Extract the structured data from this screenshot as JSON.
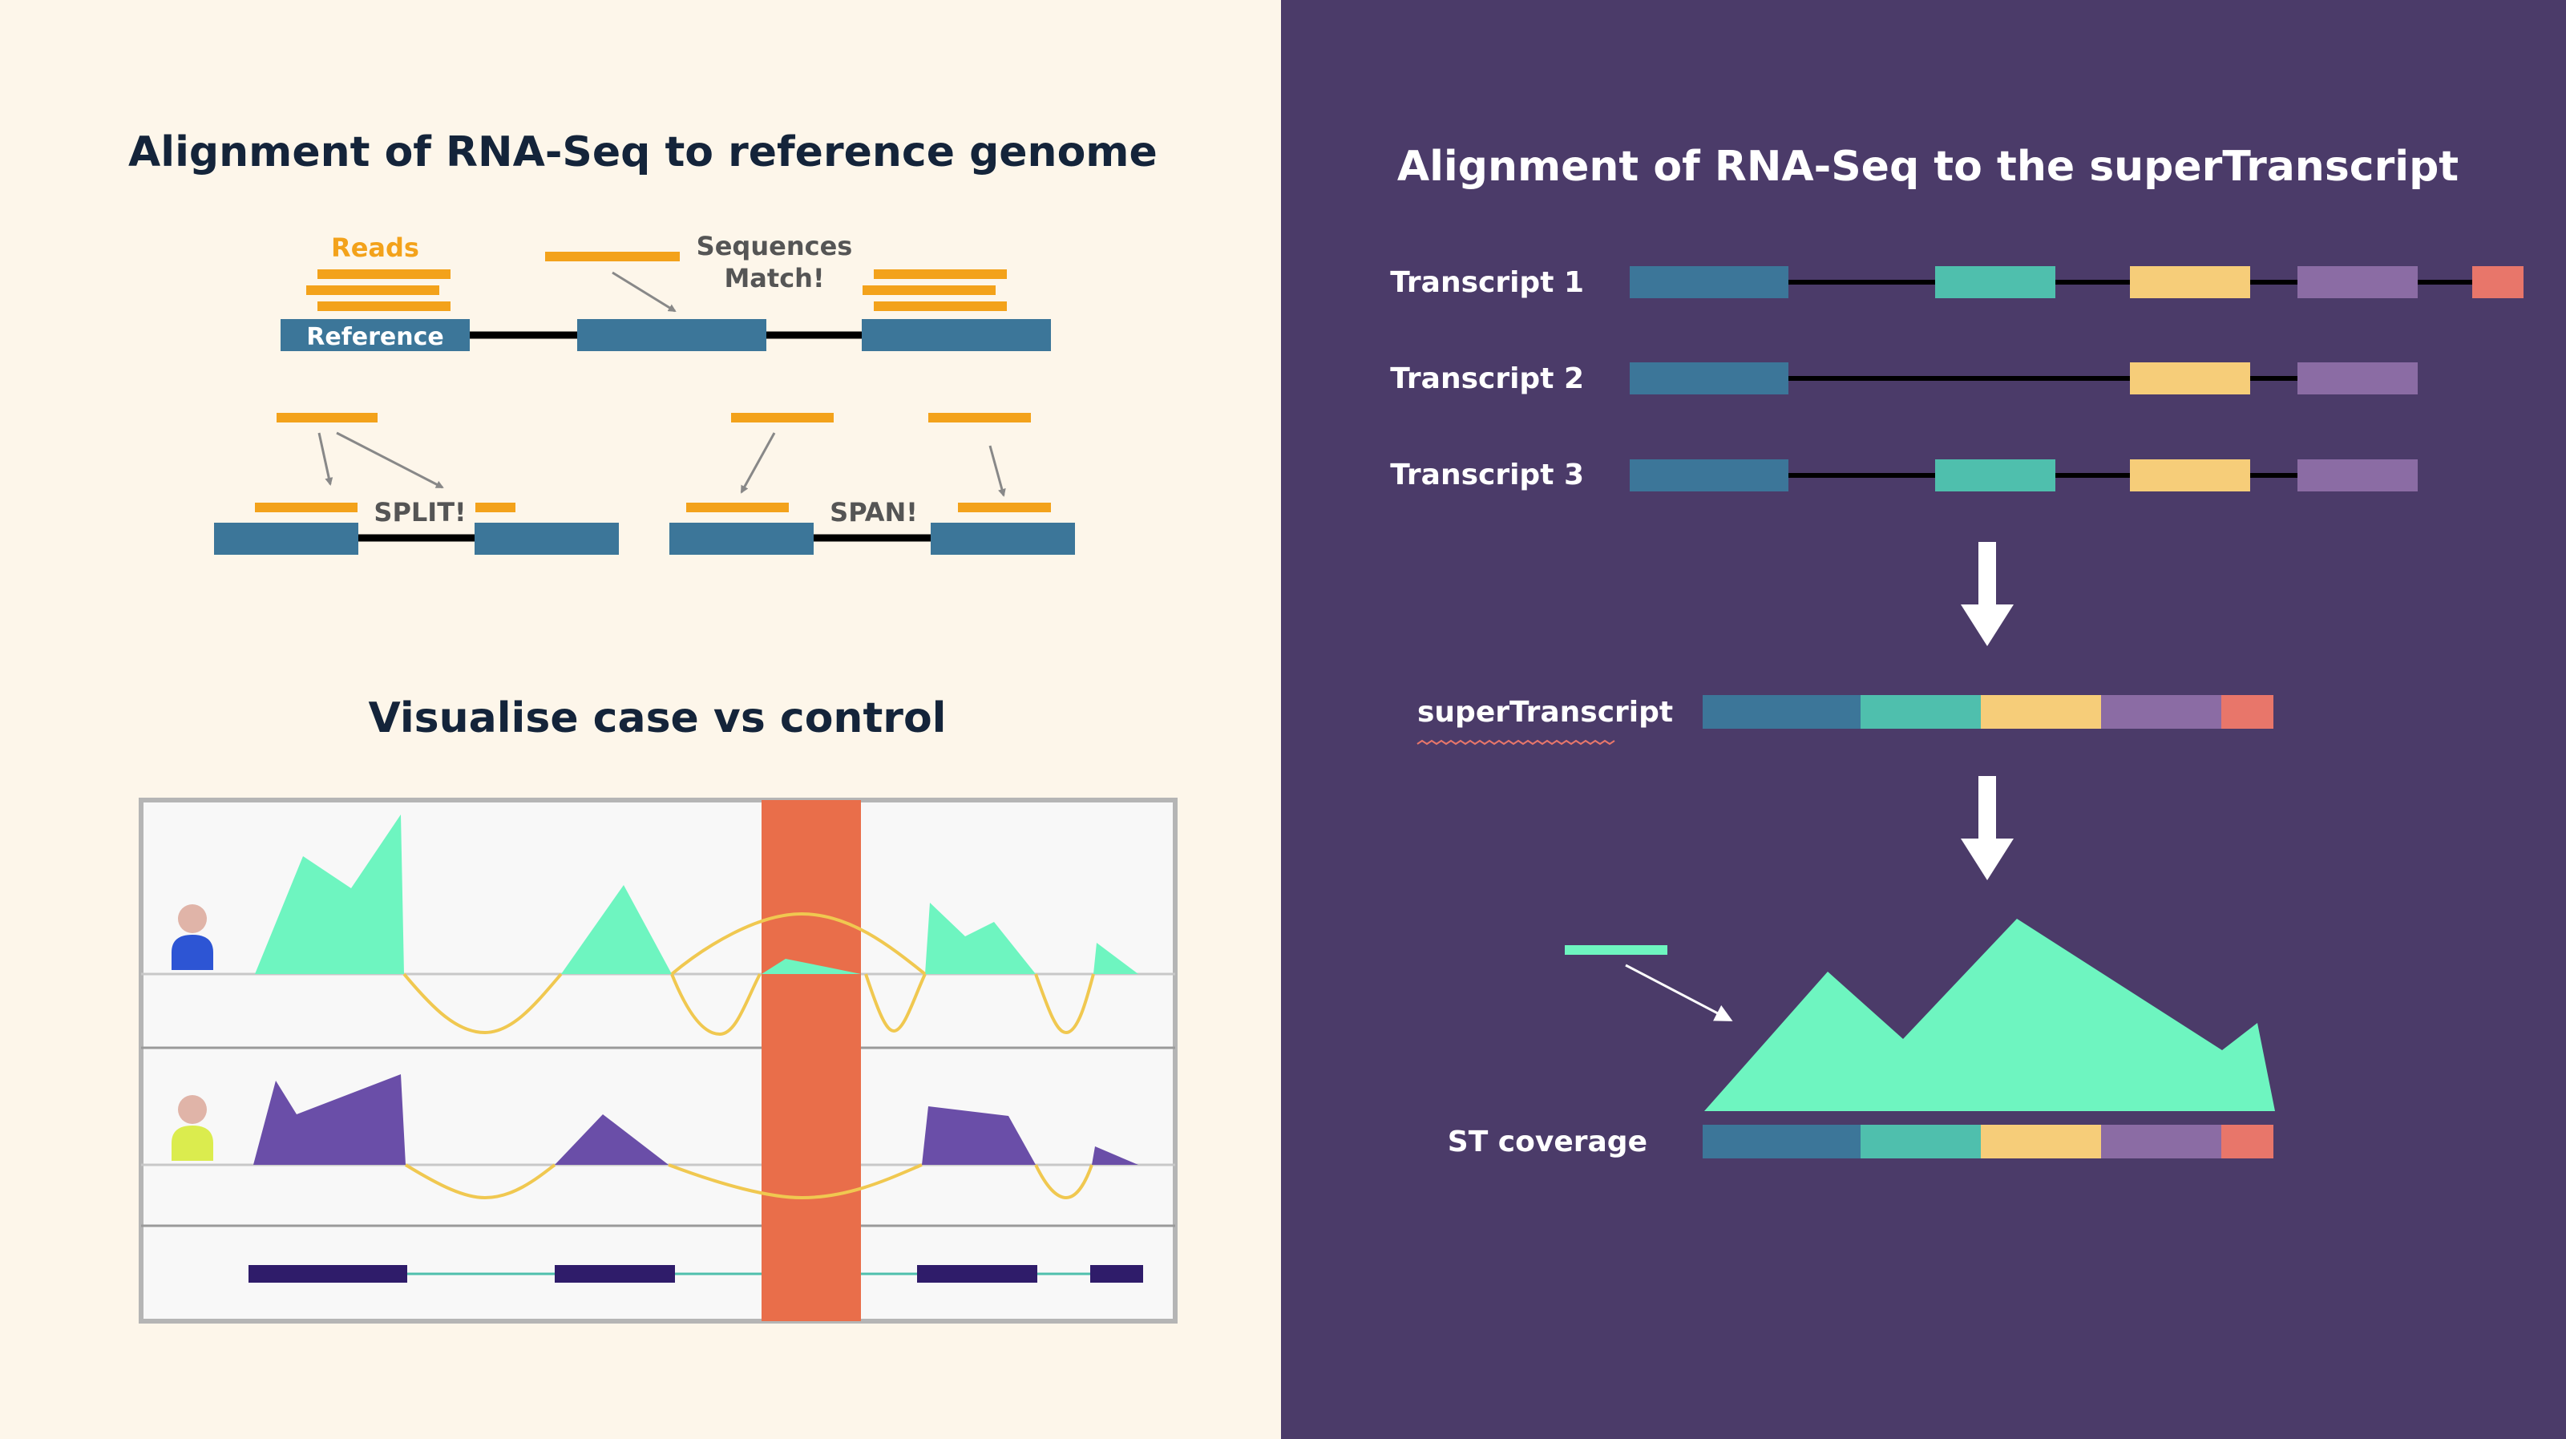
{
  "left_panel": {
    "title_top": "Alignment of RNA-Seq to reference genome",
    "title_bottom": "Visualise case vs control",
    "labels": {
      "reads": "Reads",
      "sequences_match_line1": "Sequences",
      "sequences_match_line2": "Match!",
      "reference": "Reference",
      "split": "SPLIT!",
      "span": "SPAN!"
    }
  },
  "right_panel": {
    "title": "Alignment of RNA-Seq to the superTranscript",
    "transcripts": [
      {
        "label": "Transcript 1"
      },
      {
        "label": "Transcript 2"
      },
      {
        "label": "Transcript 3"
      }
    ],
    "supertranscript_label": "superTranscript",
    "coverage_label": "ST coverage"
  },
  "colors": {
    "left_background": "#fdf6ea",
    "right_background": "#4b3b69",
    "exon_blue": "#3c7699",
    "exon_teal": "#4fbfad",
    "exon_yellow": "#f6cd79",
    "exon_purple": "#8b6ca4",
    "exon_red": "#e8766a",
    "read_orange": "#f3a21b",
    "coverage_green": "#6ef5c0",
    "control_purple": "#6a4ea8",
    "highlight_orange": "#e96e4a",
    "fold_yellow": "#f0c850",
    "gene_navy": "#2f1c6a"
  }
}
